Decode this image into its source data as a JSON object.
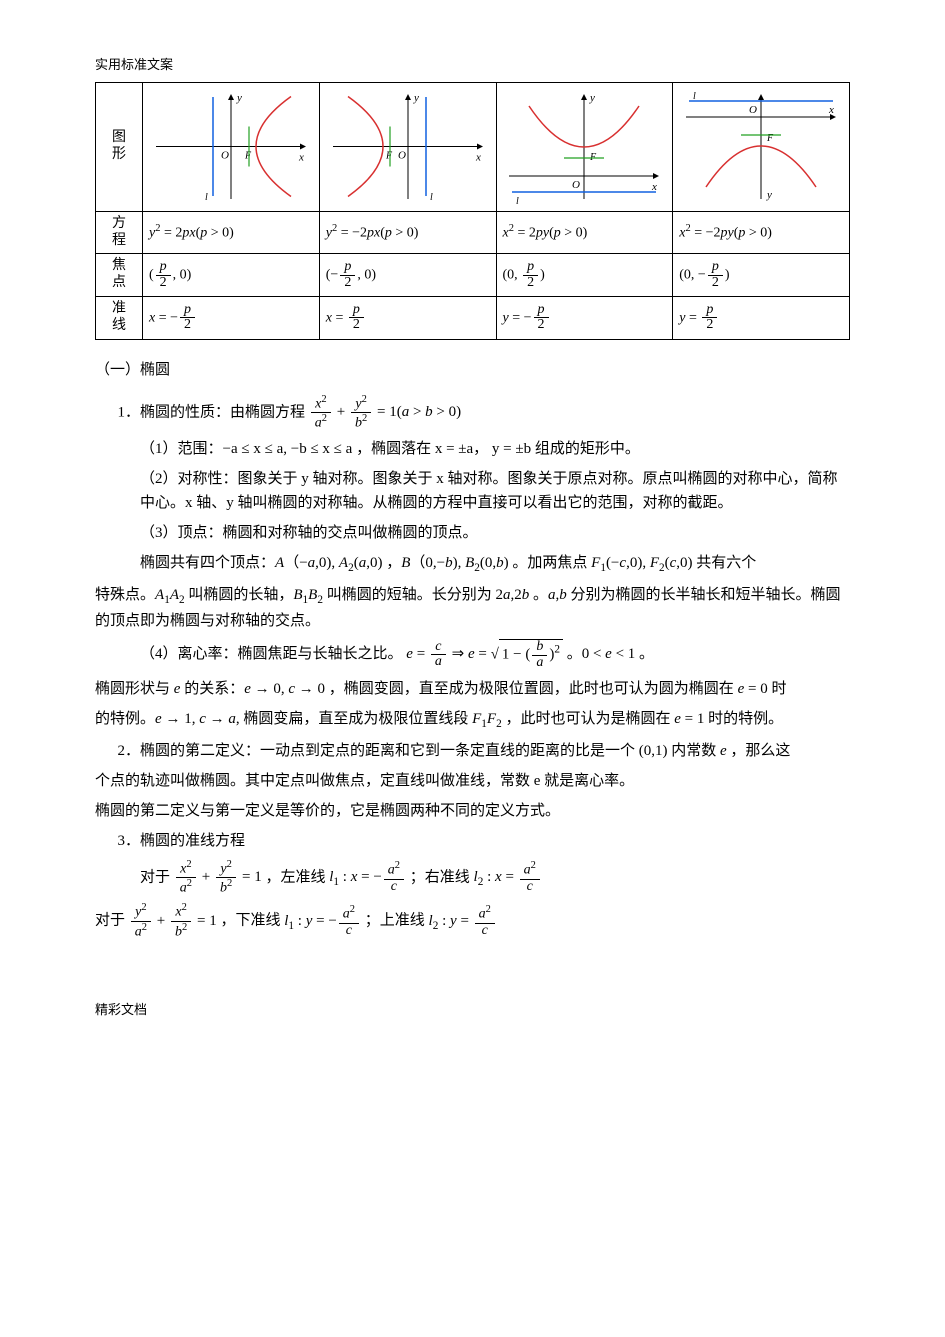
{
  "header": "实用标准文案",
  "footer": "精彩文档",
  "table": {
    "rowLabels": {
      "graph": "图\n形",
      "equation": "方\n程",
      "focus": "焦\n点",
      "directrix": "准\n线"
    },
    "cols": [
      {
        "equation_html": "<span class='ital'>y</span><span class='sup'>2</span> = 2<span class='ital'>px</span>(<span class='ital'>p</span> &gt; 0)",
        "focus_html": "(<span class='frac'><span class='num'><span class='ital'>p</span></span><span class='den'>2</span></span>, 0)",
        "directrix_html": "<span class='ital'>x</span> = −<span class='frac'><span class='num'><span class='ital'>p</span></span><span class='den'>2</span></span>",
        "graph": {
          "orient": "right"
        }
      },
      {
        "equation_html": "<span class='ital'>y</span><span class='sup'>2</span> = −2<span class='ital'>px</span>(<span class='ital'>p</span> &gt; 0)",
        "focus_html": "(−<span class='frac'><span class='num'><span class='ital'>p</span></span><span class='den'>2</span></span>, 0)",
        "directrix_html": "<span class='ital'>x</span> = <span class='frac'><span class='num'><span class='ital'>p</span></span><span class='den'>2</span></span>",
        "graph": {
          "orient": "left"
        }
      },
      {
        "equation_html": "<span class='ital'>x</span><span class='sup'>2</span> = 2<span class='ital'>py</span>(<span class='ital'>p</span> &gt; 0)",
        "focus_html": "(0, <span class='frac'><span class='num'><span class='ital'>p</span></span><span class='den'>2</span></span>)",
        "directrix_html": "<span class='ital'>y</span> = −<span class='frac'><span class='num'><span class='ital'>p</span></span><span class='den'>2</span></span>",
        "graph": {
          "orient": "up"
        }
      },
      {
        "equation_html": "<span class='ital'>x</span><span class='sup'>2</span> = −2<span class='ital'>py</span>(<span class='ital'>p</span> &gt; 0)",
        "focus_html": "(0, −<span class='frac'><span class='num'><span class='ital'>p</span></span><span class='den'>2</span></span>)",
        "directrix_html": "<span class='ital'>y</span> = <span class='frac'><span class='num'><span class='ital'>p</span></span><span class='den'>2</span></span>",
        "graph": {
          "orient": "down"
        }
      }
    ],
    "colors": {
      "axis": "#000000",
      "curve": "#d83030",
      "directrix": "#1060e0",
      "chord": "#20a020",
      "bg": "#ffffff"
    }
  },
  "sectionTitle": "（一）椭圆",
  "body": {
    "p1_prefix": "1．椭圆的性质：由椭圆方程",
    "p1_eq_html": "<span class='frac'><span class='num'><span class='ital'>x</span><span class='sup'>2</span></span><span class='den'><span class='ital'>a</span><span class='sup'>2</span></span></span> + <span class='frac'><span class='num'><span class='ital'>y</span><span class='sup'>2</span></span><span class='den'><span class='ital'>b</span><span class='sup'>2</span></span></span> = 1(<span class='ital'>a</span> &gt; <span class='ital'>b</span> &gt; 0)",
    "p2": "（1）范围：−a ≤ x ≤ a, −b ≤ x ≤ a ，椭圆落在 x = ±a， y = ±b 组成的矩形中。",
    "p3": "（2）对称性：图象关于 y 轴对称。图象关于 x 轴对称。图象关于原点对称。原点叫椭圆的对称中心，简称中心。x 轴、y 轴叫椭圆的对称轴。从椭圆的方程中直接可以看出它的范围，对称的截距。",
    "p4": "（3）顶点：椭圆和对称轴的交点叫做椭圆的顶点。",
    "p5_html": "椭圆共有四个顶点：<span class='ital'>A</span>（−<span class='ital'>a</span>,0), <span class='ital'>A</span><span class='sub'>2</span>(<span class='ital'>a</span>,0) ，<span class='ital'>B</span>（0,−<span class='ital'>b</span>), <span class='ital'>B</span><span class='sub'>2</span>(0,<span class='ital'>b</span>) 。加两焦点 <span class='ital'>F</span><span class='sub'>1</span>(−<span class='ital'>c</span>,0), <span class='ital'>F</span><span class='sub'>2</span>(<span class='ital'>c</span>,0) 共有六个",
    "p6_html": "特殊点。<span class='ital'>A</span><span class='sub'>1</span><span class='ital'>A</span><span class='sub'>2</span> 叫椭圆的长轴，<span class='ital'>B</span><span class='sub'>1</span><span class='ital'>B</span><span class='sub'>2</span> 叫椭圆的短轴。长分别为 2<span class='ital'>a</span>,2<span class='ital'>b</span> 。<span class='ital'>a</span>,<span class='ital'>b</span> 分别为椭圆的长半轴长和短半轴长。椭圆的顶点即为椭圆与对称轴的交点。",
    "p7_prefix": "（4）离心率：椭圆焦距与长轴长之比。",
    "p7_eq_html": "<span class='ital'>e</span> = <span class='frac'><span class='num'><span class='ital'>c</span></span><span class='den'><span class='ital'>a</span></span></span> ⇒ <span class='ital'>e</span> = <span class='sqrt'>√<span class='radicand'>1 − (<span class='frac'><span class='num'><span class='ital'>b</span></span><span class='den'><span class='ital'>a</span></span></span>)<span class='sup'>2</span></span></span> 。0 &lt; <span class='ital'>e</span> &lt; 1 。",
    "p8_html": "椭圆形状与 <span class='ital'>e</span> 的关系：<span class='ital'>e</span> → 0, <span class='ital'>c</span> → 0 ，椭圆变圆，直至成为极限位置圆，此时也可认为圆为椭圆在 <span class='ital'>e</span> = 0 时",
    "p9_html": "的特例。<span class='ital'>e</span> → 1, <span class='ital'>c</span> → <span class='ital'>a</span>, 椭圆变扁，直至成为极限位置线段 <span class='ital'>F</span><span class='sub'>1</span><span class='ital'>F</span><span class='sub'>2</span> ，此时也可认为是椭圆在 <span class='ital'>e</span> = 1 时的特例。",
    "p10_html": "2．椭圆的第二定义：一动点到定点的距离和它到一条定直线的距离的比是一个 (0,1) 内常数 <span class='ital'>e</span> ，那么这",
    "p11": "个点的轨迹叫做椭圆。其中定点叫做焦点，定直线叫做准线，常数 e 就是离心率。",
    "p12": "椭圆的第二定义与第一定义是等价的，它是椭圆两种不同的定义方式。",
    "p13": "3．椭圆的准线方程",
    "p14_prefix": "对于",
    "p14_eq1_html": "<span class='frac'><span class='num'><span class='ital'>x</span><span class='sup'>2</span></span><span class='den'><span class='ital'>a</span><span class='sup'>2</span></span></span> + <span class='frac'><span class='num'><span class='ital'>y</span><span class='sup'>2</span></span><span class='den'><span class='ital'>b</span><span class='sup'>2</span></span></span> = 1",
    "p14_mid": "，左准线",
    "p14_eq2_html": "<span class='ital'>l</span><span class='sub'>1</span> : <span class='ital'>x</span> = −<span class='frac'><span class='num'><span class='ital'>a</span><span class='sup'>2</span></span><span class='den'><span class='ital'>c</span></span></span>",
    "p14_mid2": "；右准线",
    "p14_eq3_html": "<span class='ital'>l</span><span class='sub'>2</span> : <span class='ital'>x</span> = <span class='frac'><span class='num'><span class='ital'>a</span><span class='sup'>2</span></span><span class='den'><span class='ital'>c</span></span></span>",
    "p15_prefix": "对于",
    "p15_eq1_html": "<span class='frac'><span class='num'><span class='ital'>y</span><span class='sup'>2</span></span><span class='den'><span class='ital'>a</span><span class='sup'>2</span></span></span> + <span class='frac'><span class='num'><span class='ital'>x</span><span class='sup'>2</span></span><span class='den'><span class='ital'>b</span><span class='sup'>2</span></span></span> = 1",
    "p15_mid": "，下准线",
    "p15_eq2_html": "<span class='ital'>l</span><span class='sub'>1</span> : <span class='ital'>y</span> = −<span class='frac'><span class='num'><span class='ital'>a</span><span class='sup'>2</span></span><span class='den'><span class='ital'>c</span></span></span>",
    "p15_mid2": "；上准线",
    "p15_eq3_html": "<span class='ital'>l</span><span class='sub'>2</span> : <span class='ital'>y</span> = <span class='frac'><span class='num'><span class='ital'>a</span><span class='sup'>2</span></span><span class='den'><span class='ital'>c</span></span></span>"
  }
}
